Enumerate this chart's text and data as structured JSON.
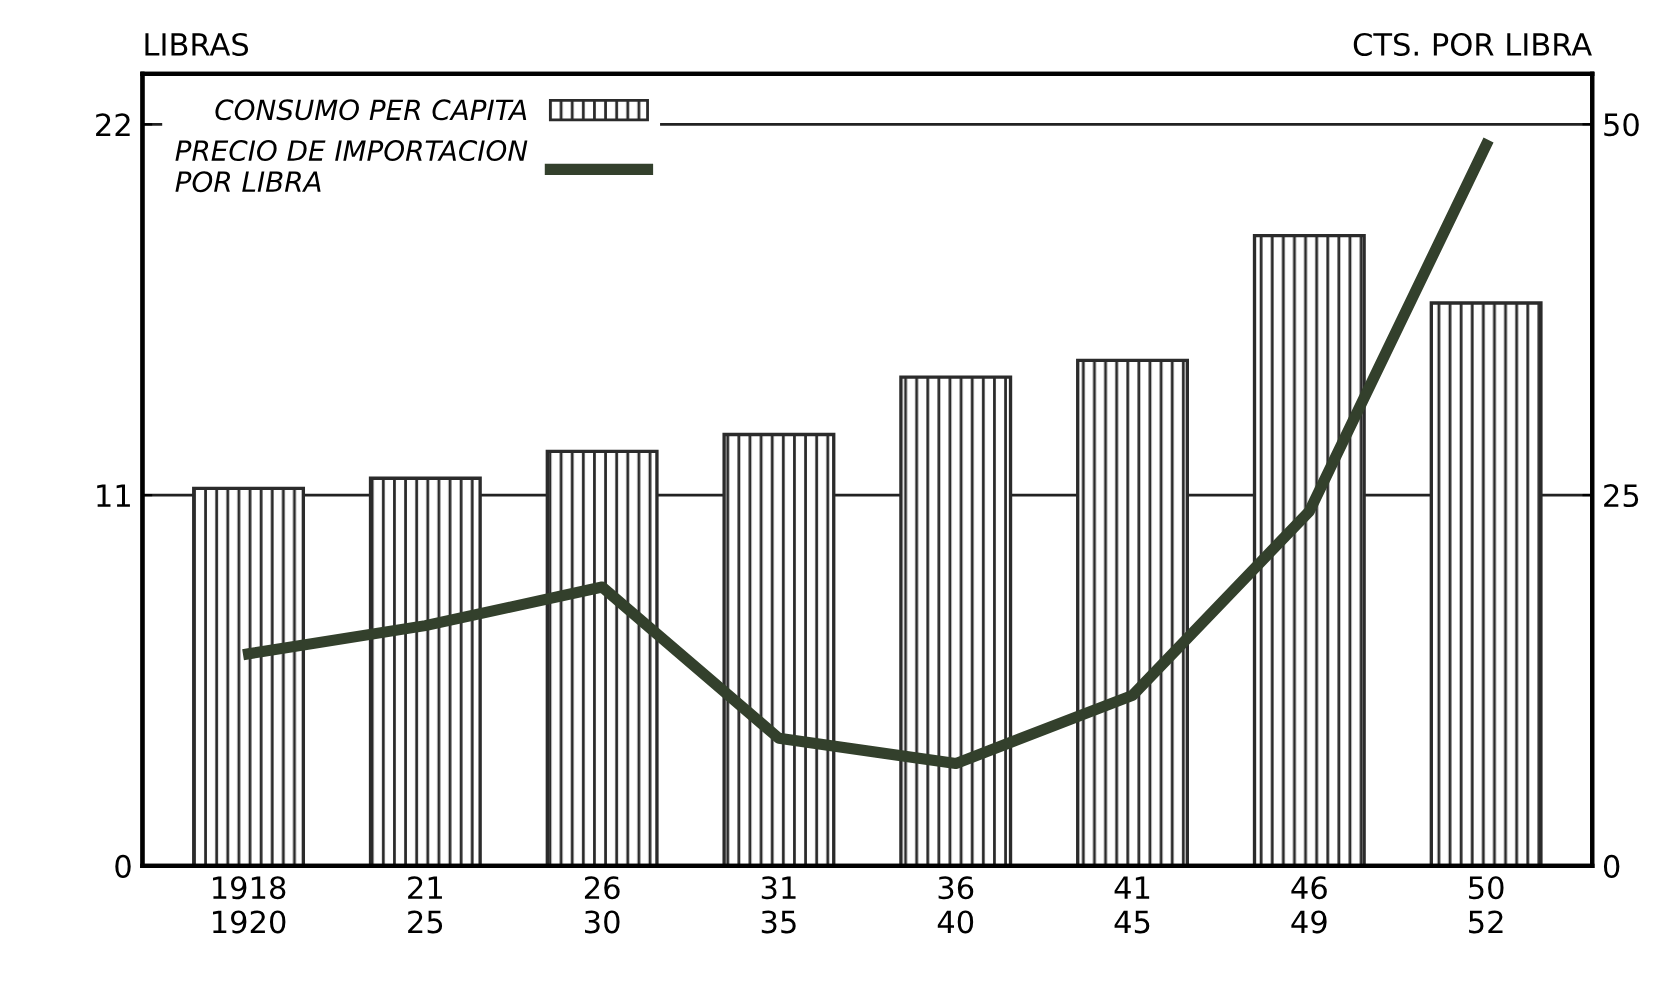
{
  "chart_data": {
    "type": "bar",
    "ylabel": "LIBRAS",
    "y2label": "CTS. POR LIBRA",
    "categories": [
      "1918\n1920",
      "21\n25",
      "26\n30",
      "31\n35",
      "36\n40",
      "41\n45",
      "46\n49",
      "50\n52"
    ],
    "series": [
      {
        "name": "CONSUMO PER CAPITA",
        "color": "#2b2b2b",
        "values": [
          11.2,
          11.5,
          12.3,
          12.8,
          14.5,
          15.0,
          18.7,
          16.7
        ]
      },
      {
        "name": "PRECIO DE IMPORTACION\nPOR LIBRA",
        "type": "line",
        "axis": "y2",
        "color": "#33402c",
        "values": [
          14.3,
          16.2,
          18.8,
          8.6,
          6.9,
          11.5,
          23.9,
          48.6
        ]
      }
    ],
    "ylim": [
      0,
      23.5
    ],
    "yticks": [
      0,
      11,
      22
    ],
    "y2lim": [
      0,
      53.4
    ],
    "y2ticks": [
      0,
      25,
      50
    ],
    "grid": "y",
    "legend": "top left"
  }
}
